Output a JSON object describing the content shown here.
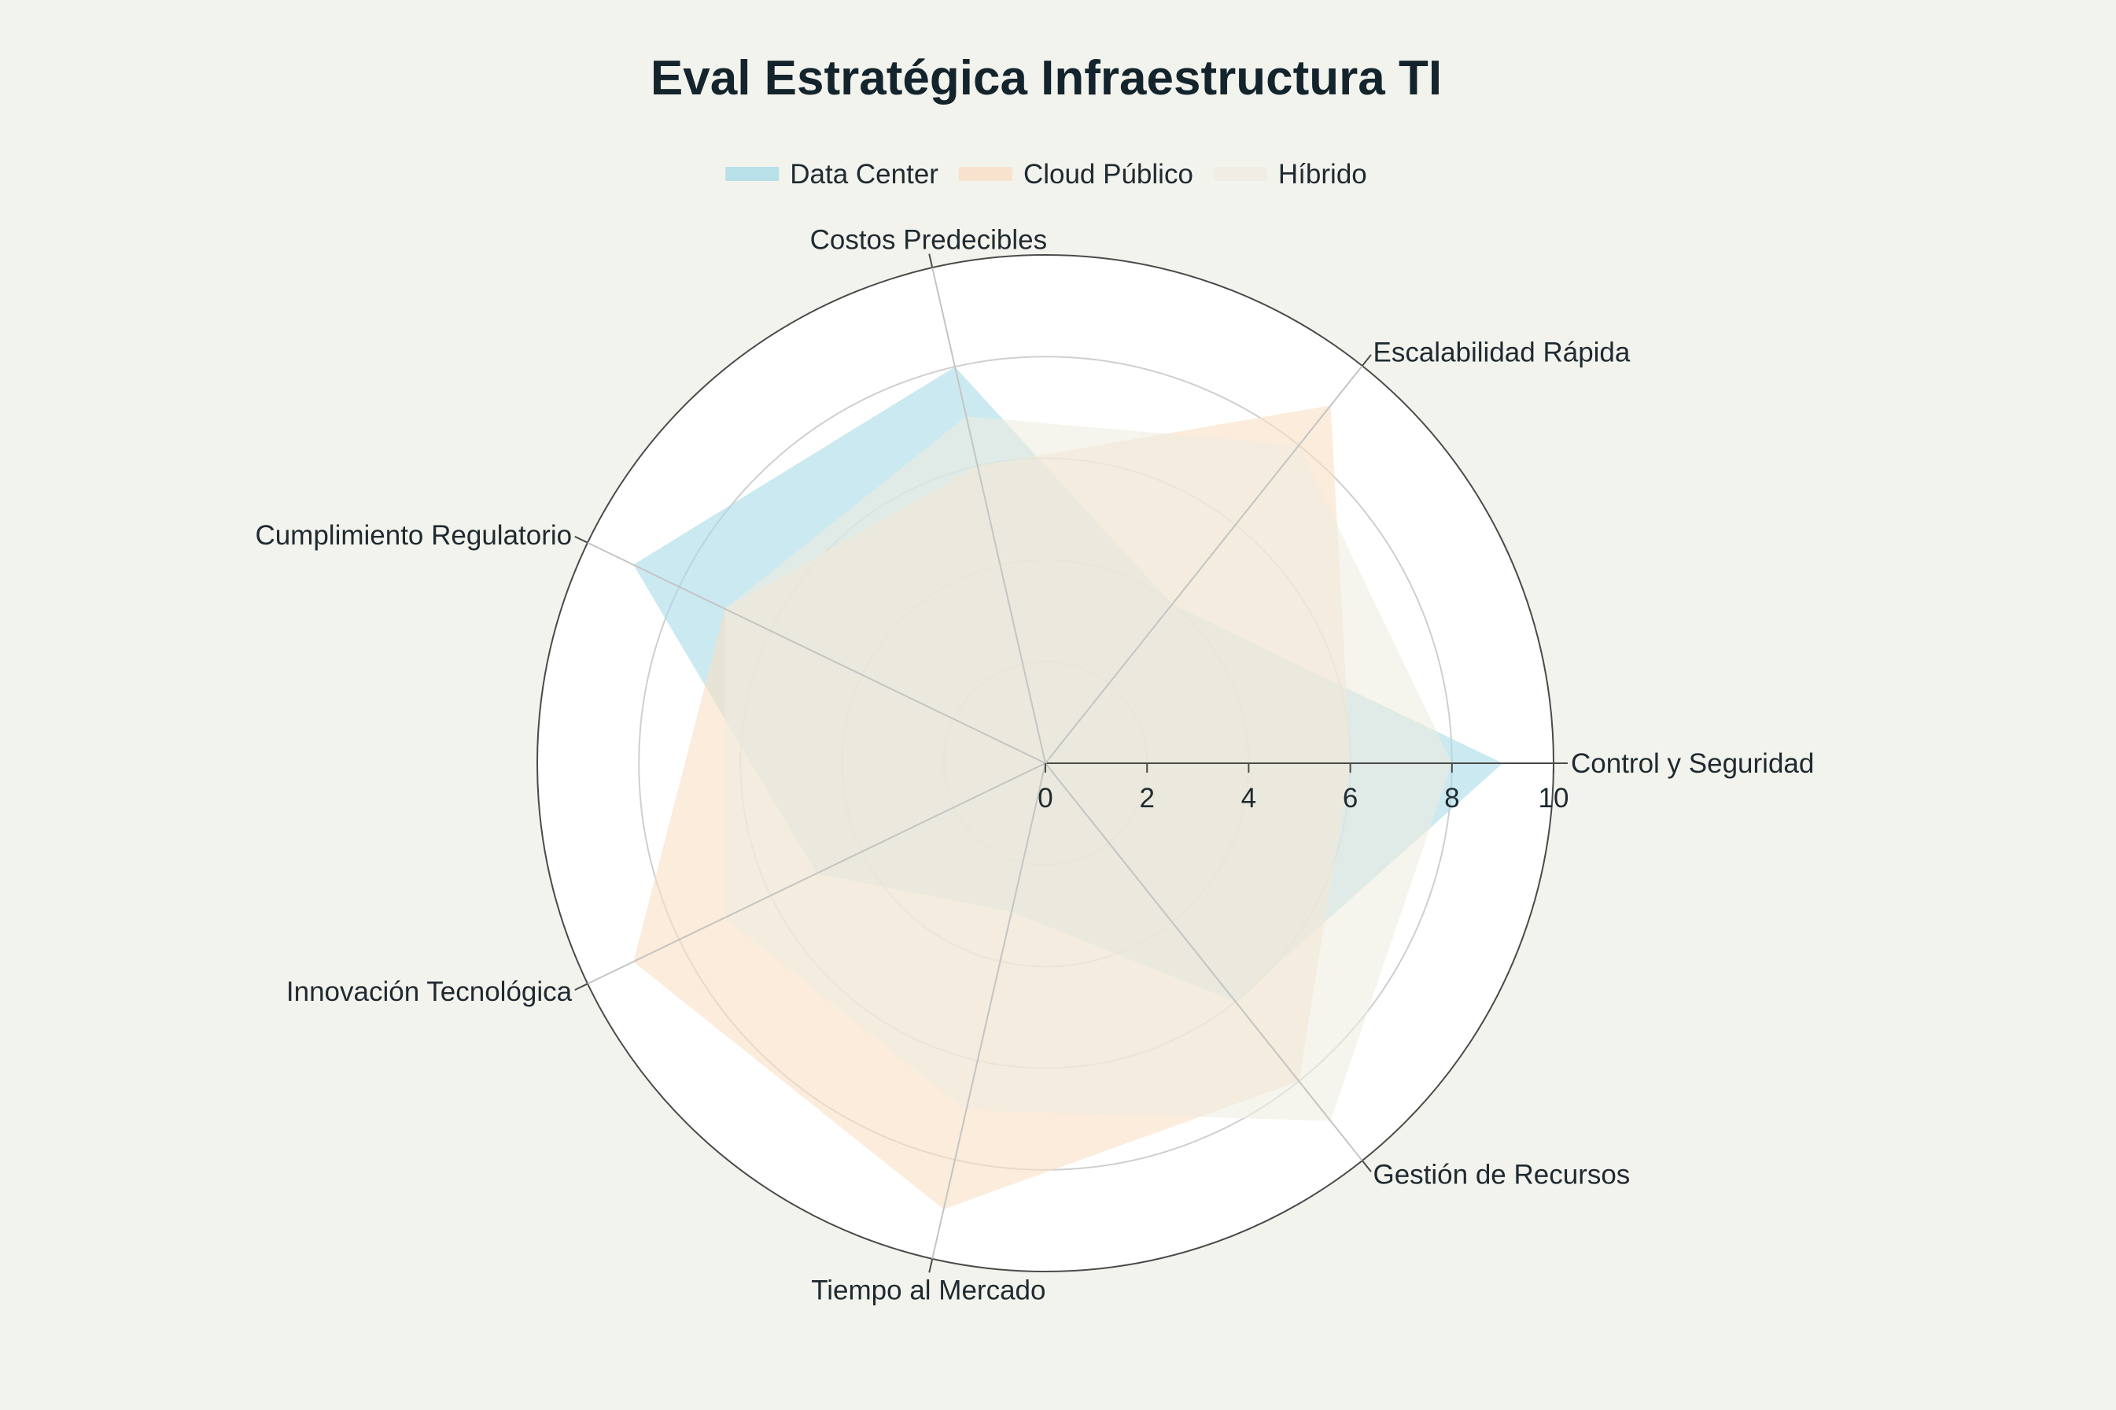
{
  "chart_data": {
    "type": "radar",
    "title": "Eval Estratégica Infraestructura TI",
    "axes": [
      "Control y Seguridad",
      "Escalabilidad Rápida",
      "Costos Predecibles",
      "Cumplimiento Regulatorio",
      "Innovación Tecnológica",
      "Tiempo al Mercado",
      "Gestión de Recursos"
    ],
    "radial_range": [
      0,
      10
    ],
    "radial_ticks": [
      "0",
      "2",
      "4",
      "6",
      "8",
      "10"
    ],
    "grid": true,
    "legend_position": "top-center",
    "series": [
      {
        "name": "Data Center",
        "color": "#a9dbe6",
        "opacity": 0.6,
        "values": [
          9,
          4,
          8,
          9,
          5,
          3,
          6
        ]
      },
      {
        "name": "Cloud Público",
        "color": "#f8dfc4",
        "opacity": 0.6,
        "values": [
          6,
          9,
          6,
          7,
          9,
          9,
          8
        ]
      },
      {
        "name": "Híbrido",
        "color": "#efece1",
        "opacity": 0.6,
        "values": [
          8,
          8,
          7,
          7,
          7,
          7,
          9
        ]
      }
    ]
  }
}
